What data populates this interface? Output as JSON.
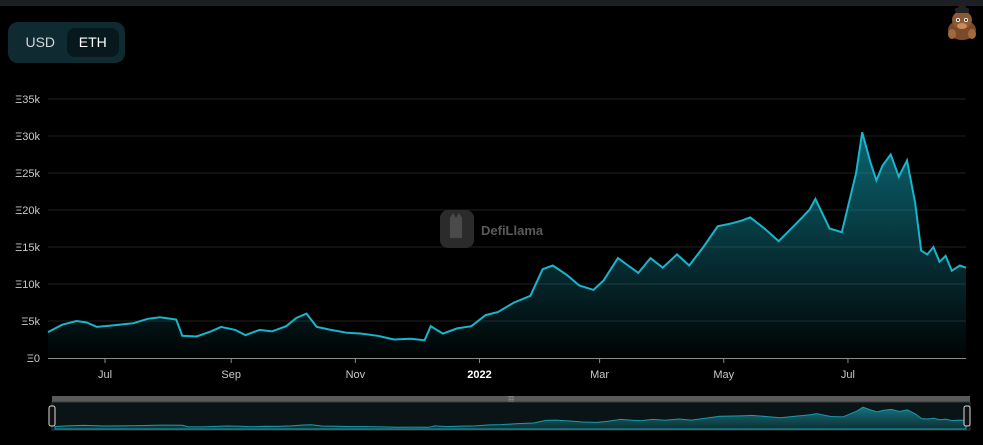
{
  "currency_toggle": {
    "options": [
      {
        "label": "USD",
        "active": false
      },
      {
        "label": "ETH",
        "active": true
      }
    ]
  },
  "watermark": "DefiLlama",
  "colors": {
    "line": "#16b6cc",
    "grid": "#1f1f1f",
    "background": "#000000"
  },
  "chart_data": {
    "type": "area",
    "title": "",
    "xlabel": "",
    "ylabel": "",
    "y_ticks": [
      "Ξ0",
      "Ξ5k",
      "Ξ10k",
      "Ξ15k",
      "Ξ20k",
      "Ξ25k",
      "Ξ30k",
      "Ξ35k"
    ],
    "ylim": [
      0,
      35000
    ],
    "x_ticks": [
      {
        "label": "Jul",
        "date": "2021-07-01",
        "bold": false
      },
      {
        "label": "Sep",
        "date": "2021-09-01",
        "bold": false
      },
      {
        "label": "Nov",
        "date": "2021-11-01",
        "bold": false
      },
      {
        "label": "2022",
        "date": "2022-01-01",
        "bold": true
      },
      {
        "label": "Mar",
        "date": "2022-03-01",
        "bold": false
      },
      {
        "label": "May",
        "date": "2022-05-01",
        "bold": false
      },
      {
        "label": "Jul",
        "date": "2022-07-01",
        "bold": false
      }
    ],
    "xlim": [
      "2021-06-03",
      "2022-08-28"
    ],
    "series": [
      {
        "unit": "ETH",
        "points": [
          [
            "2021-06-03",
            3500
          ],
          [
            "2021-06-10",
            4500
          ],
          [
            "2021-06-17",
            5000
          ],
          [
            "2021-06-22",
            4800
          ],
          [
            "2021-06-27",
            4200
          ],
          [
            "2021-07-05",
            4400
          ],
          [
            "2021-07-15",
            4700
          ],
          [
            "2021-07-22",
            5300
          ],
          [
            "2021-07-28",
            5500
          ],
          [
            "2021-08-05",
            5200
          ],
          [
            "2021-08-08",
            3000
          ],
          [
            "2021-08-15",
            2900
          ],
          [
            "2021-08-22",
            3600
          ],
          [
            "2021-08-27",
            4200
          ],
          [
            "2021-09-03",
            3800
          ],
          [
            "2021-09-08",
            3100
          ],
          [
            "2021-09-15",
            3800
          ],
          [
            "2021-09-21",
            3600
          ],
          [
            "2021-09-28",
            4300
          ],
          [
            "2021-10-03",
            5400
          ],
          [
            "2021-10-08",
            6000
          ],
          [
            "2021-10-13",
            4200
          ],
          [
            "2021-10-20",
            3800
          ],
          [
            "2021-10-28",
            3400
          ],
          [
            "2021-11-04",
            3300
          ],
          [
            "2021-11-12",
            3000
          ],
          [
            "2021-11-20",
            2500
          ],
          [
            "2021-11-28",
            2600
          ],
          [
            "2021-12-05",
            2400
          ],
          [
            "2021-12-08",
            4300
          ],
          [
            "2021-12-14",
            3300
          ],
          [
            "2021-12-21",
            4000
          ],
          [
            "2021-12-28",
            4300
          ],
          [
            "2022-01-04",
            5800
          ],
          [
            "2022-01-10",
            6200
          ],
          [
            "2022-01-18",
            7500
          ],
          [
            "2022-01-26",
            8400
          ],
          [
            "2022-02-01",
            12000
          ],
          [
            "2022-02-06",
            12500
          ],
          [
            "2022-02-13",
            11200
          ],
          [
            "2022-02-19",
            9800
          ],
          [
            "2022-02-26",
            9200
          ],
          [
            "2022-03-03",
            10500
          ],
          [
            "2022-03-10",
            13500
          ],
          [
            "2022-03-15",
            12500
          ],
          [
            "2022-03-20",
            11500
          ],
          [
            "2022-03-26",
            13500
          ],
          [
            "2022-04-01",
            12200
          ],
          [
            "2022-04-08",
            14000
          ],
          [
            "2022-04-14",
            12500
          ],
          [
            "2022-04-21",
            15000
          ],
          [
            "2022-04-28",
            17800
          ],
          [
            "2022-05-05",
            18200
          ],
          [
            "2022-05-10",
            18600
          ],
          [
            "2022-05-14",
            19000
          ],
          [
            "2022-05-21",
            17500
          ],
          [
            "2022-05-28",
            15800
          ],
          [
            "2022-06-05",
            18000
          ],
          [
            "2022-06-12",
            20000
          ],
          [
            "2022-06-15",
            21500
          ],
          [
            "2022-06-22",
            17500
          ],
          [
            "2022-06-28",
            17000
          ],
          [
            "2022-07-05",
            25000
          ],
          [
            "2022-07-08",
            30500
          ],
          [
            "2022-07-12",
            26500
          ],
          [
            "2022-07-15",
            24000
          ],
          [
            "2022-07-18",
            26000
          ],
          [
            "2022-07-22",
            27500
          ],
          [
            "2022-07-26",
            24500
          ],
          [
            "2022-07-30",
            26700
          ],
          [
            "2022-08-03",
            21000
          ],
          [
            "2022-08-06",
            14500
          ],
          [
            "2022-08-09",
            14000
          ],
          [
            "2022-08-12",
            15000
          ],
          [
            "2022-08-15",
            13000
          ],
          [
            "2022-08-18",
            13800
          ],
          [
            "2022-08-21",
            11800
          ],
          [
            "2022-08-25",
            12500
          ],
          [
            "2022-08-28",
            12200
          ]
        ]
      }
    ],
    "grid": true,
    "legend": "none"
  },
  "range_selector": {
    "handle_label": "⁞⁞⁞"
  }
}
